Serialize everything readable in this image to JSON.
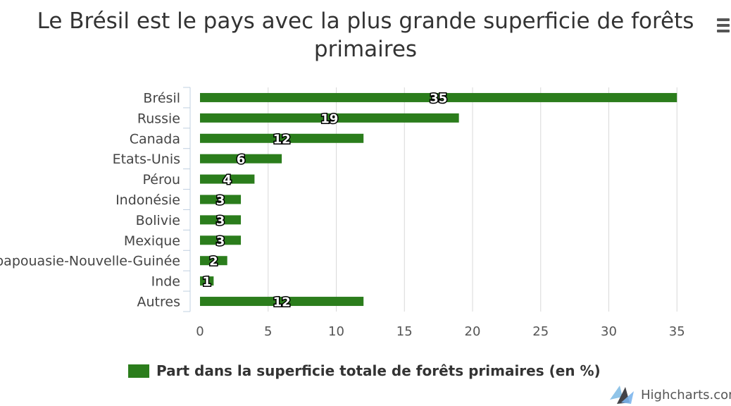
{
  "chart_data": {
    "type": "bar",
    "orientation": "horizontal",
    "title": "Le Brésil est le pays avec la plus grande superficie de forêts primaires",
    "title_lines": [
      "Le Brésil est le pays avec la plus grande superficie de forêts",
      "primaires"
    ],
    "categories": [
      "Brésil",
      "Russie",
      "Canada",
      "Etats-Unis",
      "Pérou",
      "Indonésie",
      "Bolivie",
      "Mexique",
      "papouasie-Nouvelle-Guinée",
      "Inde",
      "Autres"
    ],
    "series": [
      {
        "name": "Part dans la superficie totale de forêts primaires (en %)",
        "values": [
          35,
          19,
          12,
          6,
          4,
          3,
          3,
          3,
          2,
          1,
          12
        ],
        "color": "#2b7d1c"
      }
    ],
    "xlim": [
      0,
      40
    ],
    "ticks": [
      0,
      5,
      10,
      15,
      20,
      25,
      30,
      35,
      40
    ],
    "grid": true,
    "data_labels": true,
    "legend_position": "bottom-center"
  },
  "credits": {
    "label": "Highcharts.com"
  },
  "menu": {
    "icon": "hamburger-menu-icon"
  }
}
